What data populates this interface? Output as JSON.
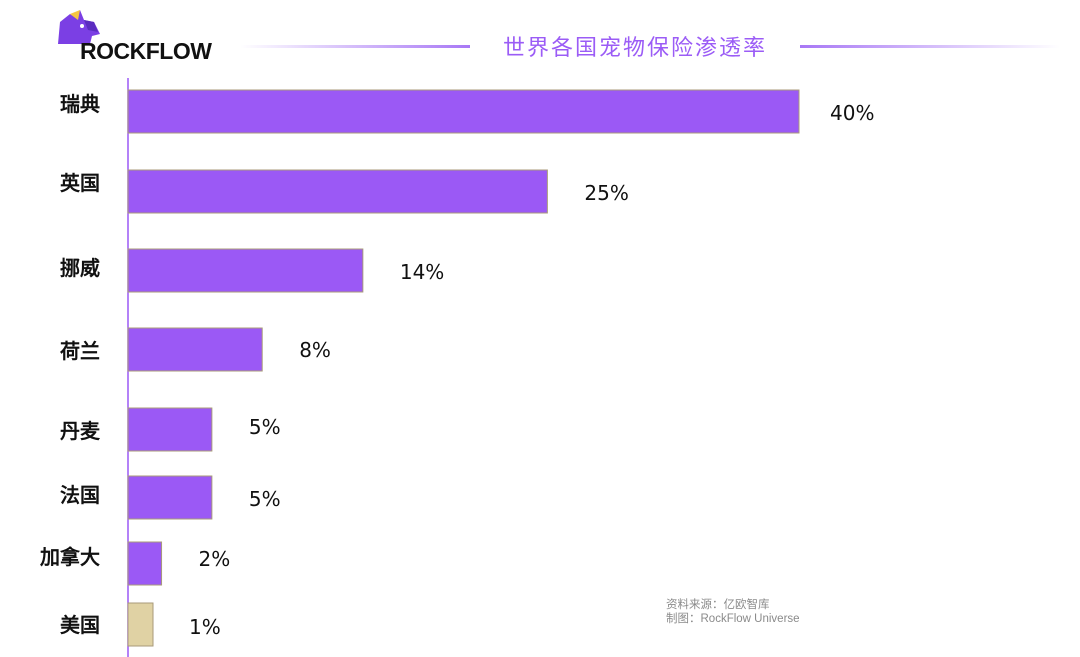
{
  "header": {
    "logo_text": "ROCKFLOW",
    "title": "世界各国宠物保险渗透率"
  },
  "source": {
    "line1": "资料来源：亿欧智库",
    "line2": "制图：RockFlow Universe"
  },
  "colors": {
    "bar": "#9b59f5",
    "bar_highlight": "#e0d2a4",
    "bar_stroke": "#a89a7a",
    "axis": "#9b59f5",
    "title": "#9b5cf6"
  },
  "chart_data": {
    "type": "bar",
    "orientation": "horizontal",
    "title": "世界各国宠物保险渗透率",
    "categories": [
      "瑞典",
      "英国",
      "挪威",
      "荷兰",
      "丹麦",
      "法国",
      "加拿大",
      "美国"
    ],
    "values": [
      40,
      25,
      14,
      8,
      5,
      5,
      2,
      1
    ],
    "value_labels": [
      "40%",
      "25%",
      "14%",
      "8%",
      "5%",
      "5%",
      "2%",
      "1%"
    ],
    "unit": "%",
    "xlim": [
      0,
      40
    ],
    "grid": false,
    "legend": "none"
  }
}
